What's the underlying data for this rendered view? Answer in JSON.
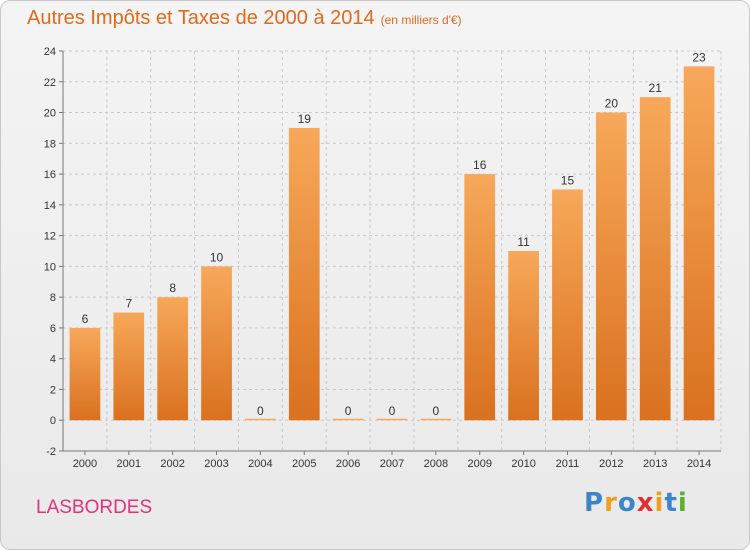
{
  "title": "Autres Impôts et Taxes de 2000 à 2014",
  "subtitle": "(en milliers d'€)",
  "place": "LASBORDES",
  "logo": {
    "letters": [
      "P",
      "r",
      "o",
      "x",
      "i",
      "t",
      "i"
    ],
    "colors": [
      "#3a86c8",
      "#f0a020",
      "#3a86c8",
      "#e03030",
      "#f0a020",
      "#3a86c8",
      "#5cb030"
    ]
  },
  "colors": {
    "bar_top": "#f7a85a",
    "bar_bottom": "#d9711f",
    "title": "#e06a1a",
    "place": "#e0337a",
    "grid": "#c9c9c9"
  },
  "chart_data": {
    "type": "bar",
    "title": "Autres Impôts et Taxes de 2000 à 2014",
    "subtitle": "(en milliers d'€)",
    "categories": [
      "2000",
      "2001",
      "2002",
      "2003",
      "2004",
      "2005",
      "2006",
      "2007",
      "2008",
      "2009",
      "2010",
      "2011",
      "2012",
      "2013",
      "2014"
    ],
    "values": [
      6,
      7,
      8,
      10,
      0,
      19,
      0,
      0,
      0,
      16,
      11,
      15,
      20,
      21,
      23
    ],
    "ylim": [
      -2,
      24
    ],
    "yticks": [
      -2,
      0,
      2,
      4,
      6,
      8,
      10,
      12,
      14,
      16,
      18,
      20,
      22,
      24
    ],
    "grid": true,
    "xlabel": "",
    "ylabel": ""
  }
}
